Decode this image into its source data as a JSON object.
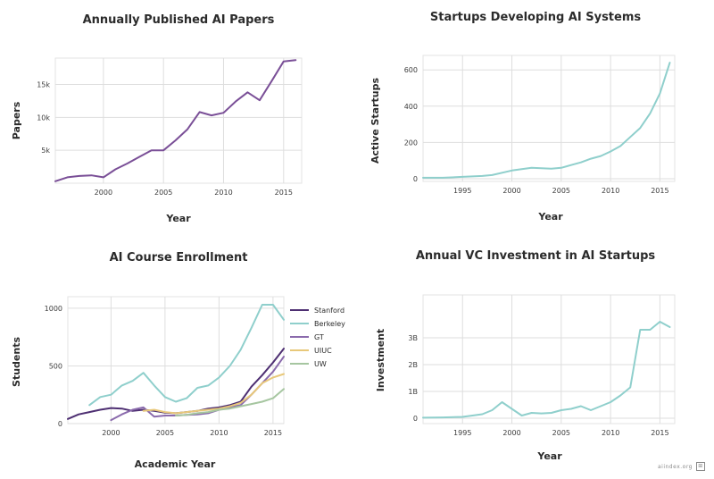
{
  "watermark": {
    "text": "aiindex.org",
    "glyph": "⊞"
  },
  "colors": {
    "purple": "#7a4f97",
    "teal": "#8fcfcc",
    "stanford": "#4e2f72",
    "berkeley": "#8fcfcc",
    "gt": "#8a6aac",
    "uiuc": "#e8c87a",
    "uw": "#a6c6a0"
  },
  "chart_data": [
    {
      "id": "papers",
      "type": "line",
      "title": "Annually Published AI Papers",
      "xlabel": "Year",
      "ylabel": "Papers",
      "xlim": [
        1996,
        2016.5
      ],
      "ylim": [
        0,
        19000
      ],
      "xticks": [
        2000,
        2005,
        2010,
        2015
      ],
      "yticks": [
        5000,
        10000,
        15000
      ],
      "ytick_labels": [
        "5k",
        "10k",
        "15k"
      ],
      "grid": true,
      "legend": null,
      "series": [
        {
          "name": "Papers",
          "color": "#7a4f97",
          "x": [
            1996,
            1997,
            1998,
            1999,
            2000,
            2001,
            2002,
            2003,
            2004,
            2005,
            2006,
            2007,
            2008,
            2009,
            2010,
            2011,
            2012,
            2013,
            2014,
            2015,
            2016
          ],
          "y": [
            300,
            900,
            1100,
            1200,
            900,
            2100,
            3000,
            4000,
            5000,
            5000,
            6500,
            8200,
            10800,
            10300,
            10700,
            12400,
            13800,
            12600,
            15500,
            18500,
            18700
          ]
        }
      ]
    },
    {
      "id": "startups",
      "type": "line",
      "title": "Startups Developing AI Systems",
      "xlabel": "Year",
      "ylabel": "Active Startups",
      "xlim": [
        1991,
        2016.5
      ],
      "ylim": [
        -15,
        680
      ],
      "xticks": [
        1995,
        2000,
        2005,
        2010,
        2015
      ],
      "yticks": [
        0,
        200,
        400,
        600
      ],
      "ytick_labels": [
        "0",
        "200",
        "400",
        "600"
      ],
      "grid": true,
      "legend": null,
      "series": [
        {
          "name": "Active Startups",
          "color": "#8fcfcc",
          "x": [
            1991,
            1993,
            1995,
            1997,
            1998,
            2000,
            2002,
            2004,
            2005,
            2006,
            2007,
            2008,
            2009,
            2010,
            2011,
            2012,
            2013,
            2014,
            2015,
            2016
          ],
          "y": [
            5,
            5,
            10,
            15,
            20,
            45,
            60,
            55,
            60,
            75,
            90,
            110,
            125,
            150,
            180,
            230,
            280,
            360,
            470,
            640
          ]
        }
      ]
    },
    {
      "id": "enrollment",
      "type": "line",
      "title": "AI Course Enrollment",
      "xlabel": "Academic Year",
      "ylabel": "Students",
      "xlim": [
        1996,
        2016
      ],
      "ylim": [
        0,
        1100
      ],
      "xticks": [
        2000,
        2005,
        2010,
        2015
      ],
      "yticks": [
        0,
        500,
        1000
      ],
      "ytick_labels": [
        "0",
        "500",
        "1000"
      ],
      "grid": true,
      "legend": "right",
      "series": [
        {
          "name": "Stanford",
          "color": "#4e2f72",
          "x": [
            1996,
            1997,
            1998,
            1999,
            2000,
            2001,
            2002,
            2003,
            2004,
            2005,
            2006,
            2007,
            2008,
            2009,
            2010,
            2011,
            2012,
            2013,
            2014,
            2015,
            2016
          ],
          "y": [
            40,
            80,
            100,
            120,
            135,
            130,
            110,
            120,
            110,
            95,
            90,
            100,
            110,
            130,
            140,
            160,
            190,
            320,
            420,
            530,
            650
          ]
        },
        {
          "name": "Berkeley",
          "color": "#8fcfcc",
          "x": [
            1998,
            1999,
            2000,
            2001,
            2002,
            2003,
            2004,
            2005,
            2006,
            2007,
            2008,
            2009,
            2010,
            2011,
            2012,
            2013,
            2014,
            2015,
            2016
          ],
          "y": [
            160,
            230,
            250,
            330,
            370,
            440,
            330,
            230,
            190,
            220,
            310,
            330,
            400,
            500,
            640,
            830,
            1030,
            1030,
            900
          ]
        },
        {
          "name": "GT",
          "color": "#8a6aac",
          "x": [
            2000,
            2001,
            2002,
            2003,
            2004,
            2005,
            2006,
            2007,
            2008,
            2009,
            2010,
            2011,
            2012,
            2013,
            2014,
            2015,
            2016
          ],
          "y": [
            30,
            80,
            120,
            140,
            60,
            70,
            70,
            75,
            80,
            90,
            120,
            140,
            160,
            250,
            350,
            450,
            580
          ]
        },
        {
          "name": "UIUC",
          "color": "#e8c87a",
          "x": [
            2003,
            2004,
            2005,
            2006,
            2007,
            2008,
            2009,
            2010,
            2011,
            2012,
            2013,
            2014,
            2015,
            2016
          ],
          "y": [
            110,
            120,
            100,
            90,
            100,
            110,
            120,
            130,
            150,
            180,
            250,
            350,
            400,
            430
          ]
        },
        {
          "name": "UW",
          "color": "#a6c6a0",
          "x": [
            2006,
            2007,
            2008,
            2009,
            2010,
            2011,
            2012,
            2013,
            2014,
            2015,
            2016
          ],
          "y": [
            70,
            75,
            90,
            100,
            120,
            130,
            150,
            170,
            190,
            220,
            300
          ]
        }
      ]
    },
    {
      "id": "vc",
      "type": "line",
      "title": "Annual VC Investment in AI Startups",
      "xlabel": "Year",
      "ylabel": "Investment",
      "xlim": [
        1991,
        2016.5
      ],
      "ylim": [
        -0.2,
        4.6
      ],
      "xticks": [
        1995,
        2000,
        2005,
        2010,
        2015
      ],
      "yticks": [
        0,
        1,
        2,
        3
      ],
      "ytick_labels": [
        "0",
        "1B",
        "2B",
        "3B"
      ],
      "grid": true,
      "legend": null,
      "series": [
        {
          "name": "Investment",
          "color": "#8fcfcc",
          "x": [
            1991,
            1993,
            1995,
            1996,
            1997,
            1998,
            1999,
            2000,
            2001,
            2002,
            2003,
            2004,
            2005,
            2006,
            2007,
            2008,
            2009,
            2010,
            2011,
            2012,
            2013,
            2014,
            2015,
            2016
          ],
          "y": [
            0.02,
            0.03,
            0.05,
            0.1,
            0.15,
            0.3,
            0.6,
            0.35,
            0.1,
            0.2,
            0.18,
            0.2,
            0.3,
            0.35,
            0.45,
            0.3,
            0.45,
            0.6,
            0.85,
            1.15,
            3.3,
            3.3,
            3.6,
            3.4
          ]
        }
      ]
    }
  ]
}
